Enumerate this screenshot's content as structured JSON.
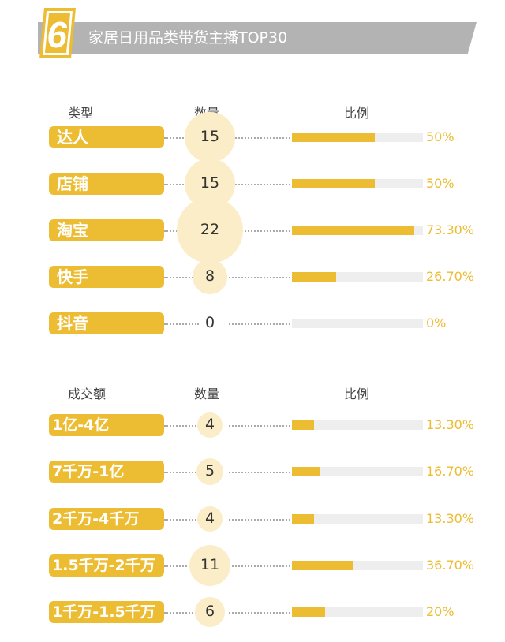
{
  "header": {
    "number": "6",
    "title": "家居日用品类带货主播TOP30"
  },
  "colors": {
    "accent": "#ecbc32",
    "circle": "#fbedc8",
    "banner": "#b3b3b3",
    "track": "#eeeeee"
  },
  "chart_data": [
    {
      "type": "bar",
      "columns": {
        "category": "类型",
        "count": "数量",
        "ratio": "比例"
      },
      "categories": [
        "达人",
        "店铺",
        "淘宝",
        "快手",
        "抖音"
      ],
      "counts": [
        15,
        15,
        22,
        8,
        0
      ],
      "values": [
        50,
        50,
        73.3,
        26.7,
        0
      ],
      "labels": [
        "50%",
        "50%",
        "73.30%",
        "26.70%",
        "0%"
      ],
      "ylim": [
        0,
        100
      ]
    },
    {
      "type": "bar",
      "columns": {
        "category": "成交额",
        "count": "数量",
        "ratio": "比例"
      },
      "categories": [
        "1亿-4亿",
        "7千万-1亿",
        "2千万-4千万",
        "1.5千万-2千万",
        "1千万-1.5千万"
      ],
      "counts": [
        4,
        5,
        4,
        11,
        6
      ],
      "values": [
        13.3,
        16.7,
        13.3,
        36.7,
        20
      ],
      "labels": [
        "13.30%",
        "16.70%",
        "13.30%",
        "36.70%",
        "20%"
      ],
      "ylim": [
        0,
        100
      ]
    }
  ]
}
